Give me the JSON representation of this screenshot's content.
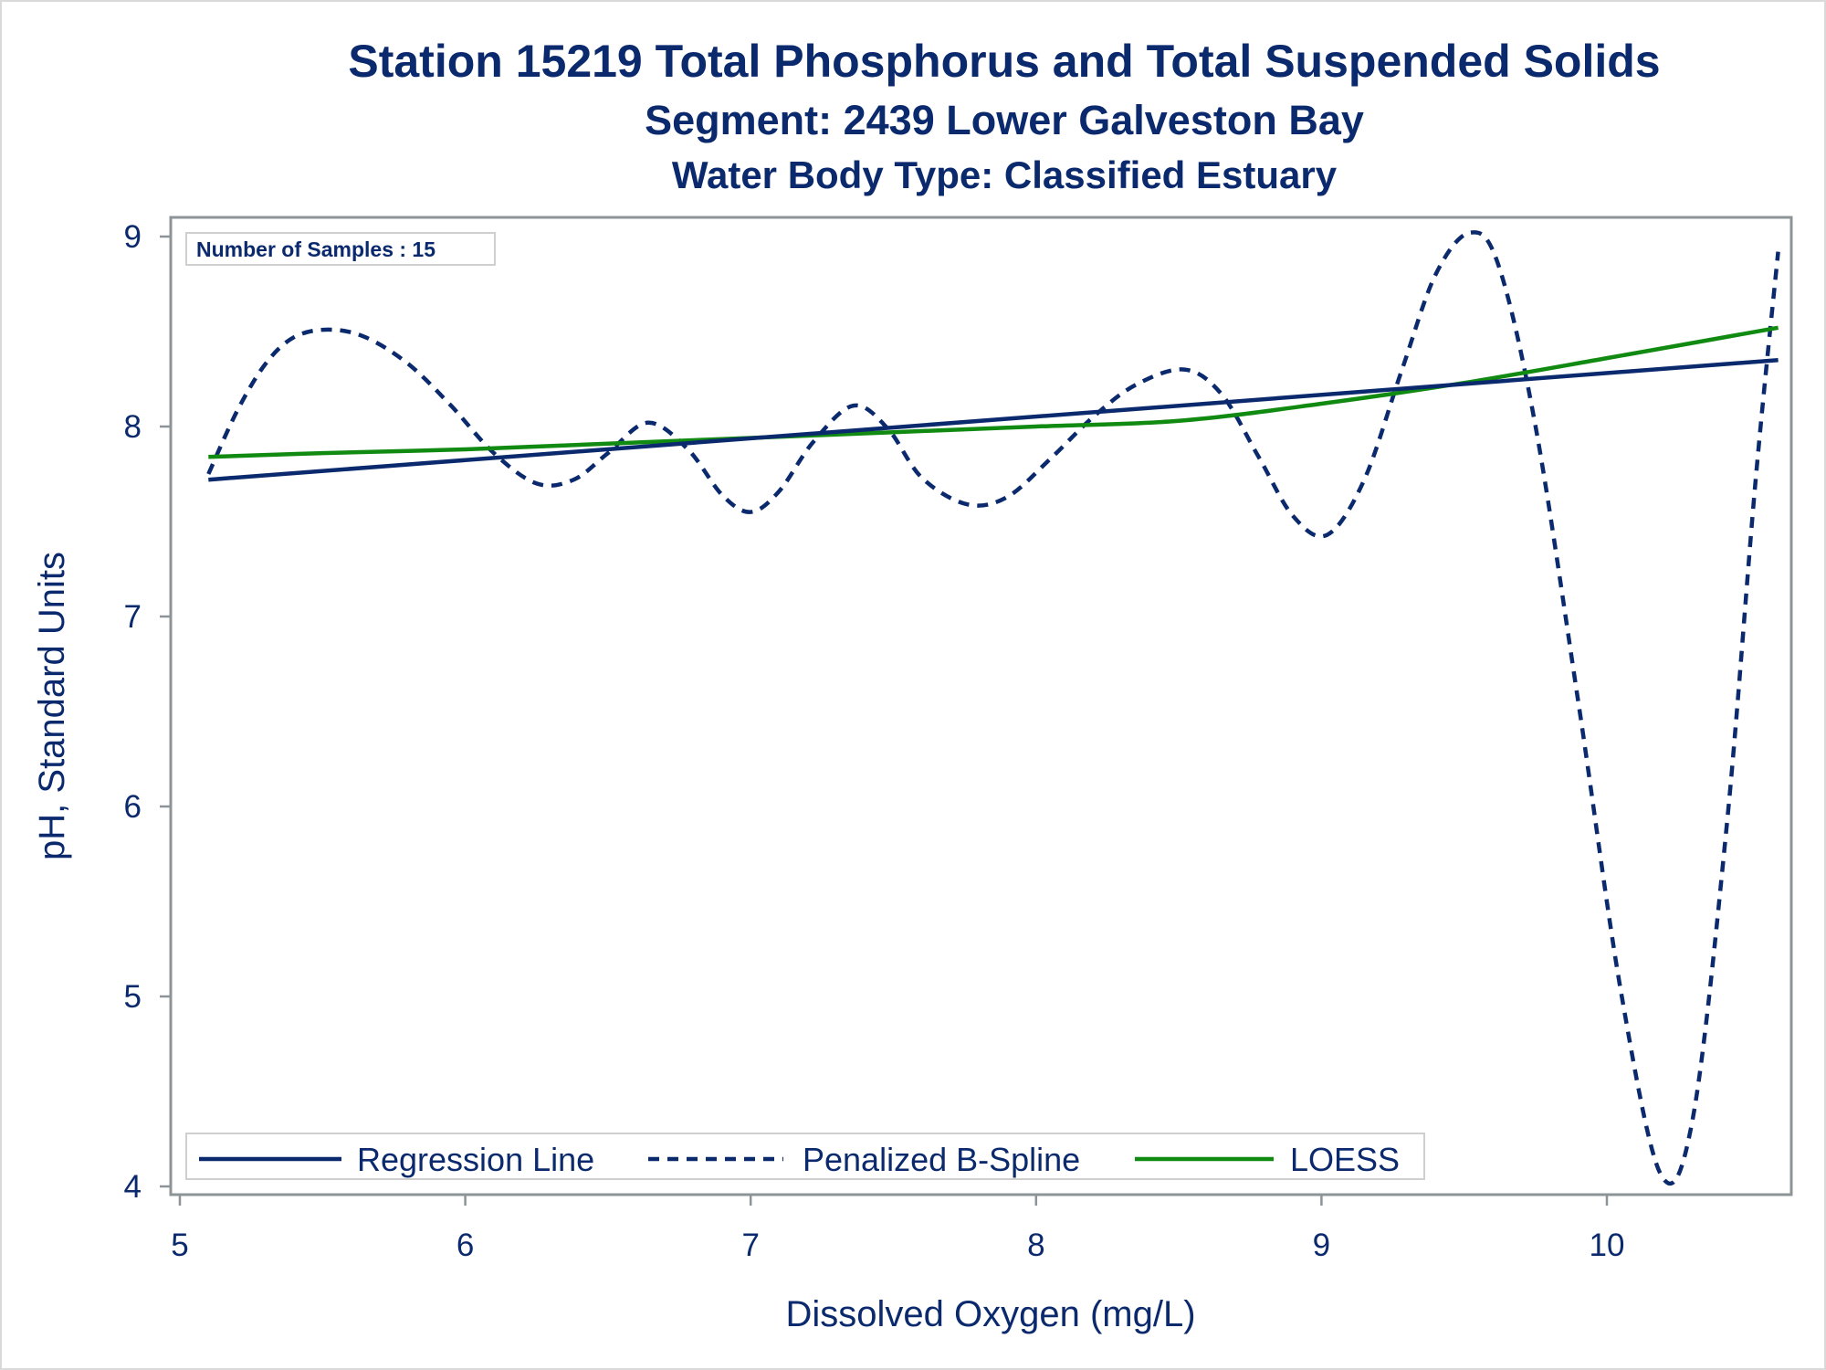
{
  "chart_data": {
    "type": "line",
    "title": "Station 15219  Total Phosphorus and Total Suspended Solids",
    "subtitle": "Segment: 2439  Lower Galveston Bay",
    "subtitle2": "Water Body Type: Classified Estuary",
    "xlabel": "Dissolved Oxygen (mg/L)",
    "ylabel": "pH, Standard Units",
    "xlim": [
      5,
      10.6
    ],
    "ylim": [
      4,
      9
    ],
    "xticks": [
      5,
      6,
      7,
      8,
      9,
      10
    ],
    "yticks": [
      4,
      5,
      6,
      7,
      8,
      9
    ],
    "grid": false,
    "legend_position": "bottom-left inside",
    "inset_label": "Number of Samples : 15",
    "colors": {
      "regression": "#0b2a6e",
      "spline": "#0b2a6e",
      "loess": "#118a11",
      "text": "#0b2a6e",
      "axis": "#8c9497"
    },
    "series": [
      {
        "name": "Regression Line",
        "style": "solid",
        "color": "#0b2a6e",
        "x": [
          5.1,
          10.6
        ],
        "y": [
          7.72,
          8.35
        ]
      },
      {
        "name": "Penalized B-Spline",
        "style": "dashed",
        "color": "#0b2a6e",
        "x": [
          5.1,
          5.2,
          5.3,
          5.4,
          5.52,
          5.65,
          5.8,
          5.95,
          6.1,
          6.25,
          6.38,
          6.5,
          6.64,
          6.78,
          6.9,
          7.0,
          7.1,
          7.22,
          7.36,
          7.48,
          7.6,
          7.76,
          7.9,
          8.05,
          8.2,
          8.35,
          8.52,
          8.65,
          8.78,
          8.9,
          9.02,
          9.15,
          9.28,
          9.4,
          9.52,
          9.62,
          9.75,
          9.9,
          10.05,
          10.19,
          10.3,
          10.42,
          10.52,
          10.6
        ],
        "y": [
          7.75,
          8.08,
          8.33,
          8.47,
          8.51,
          8.47,
          8.33,
          8.11,
          7.86,
          7.7,
          7.72,
          7.86,
          8.02,
          7.88,
          7.64,
          7.55,
          7.66,
          7.92,
          8.11,
          7.99,
          7.73,
          7.59,
          7.63,
          7.83,
          8.05,
          8.22,
          8.3,
          8.17,
          7.84,
          7.53,
          7.43,
          7.72,
          8.29,
          8.8,
          9.02,
          8.85,
          8.0,
          6.55,
          5.02,
          4.06,
          4.35,
          5.9,
          7.7,
          8.92
        ]
      },
      {
        "name": "LOESS",
        "style": "solid",
        "color": "#118a11",
        "x": [
          5.1,
          5.5,
          6.0,
          6.5,
          7.0,
          7.5,
          8.0,
          8.5,
          9.0,
          9.5,
          10.0,
          10.6
        ],
        "y": [
          7.84,
          7.86,
          7.88,
          7.91,
          7.94,
          7.97,
          8.0,
          8.03,
          8.12,
          8.23,
          8.36,
          8.52
        ]
      }
    ]
  }
}
